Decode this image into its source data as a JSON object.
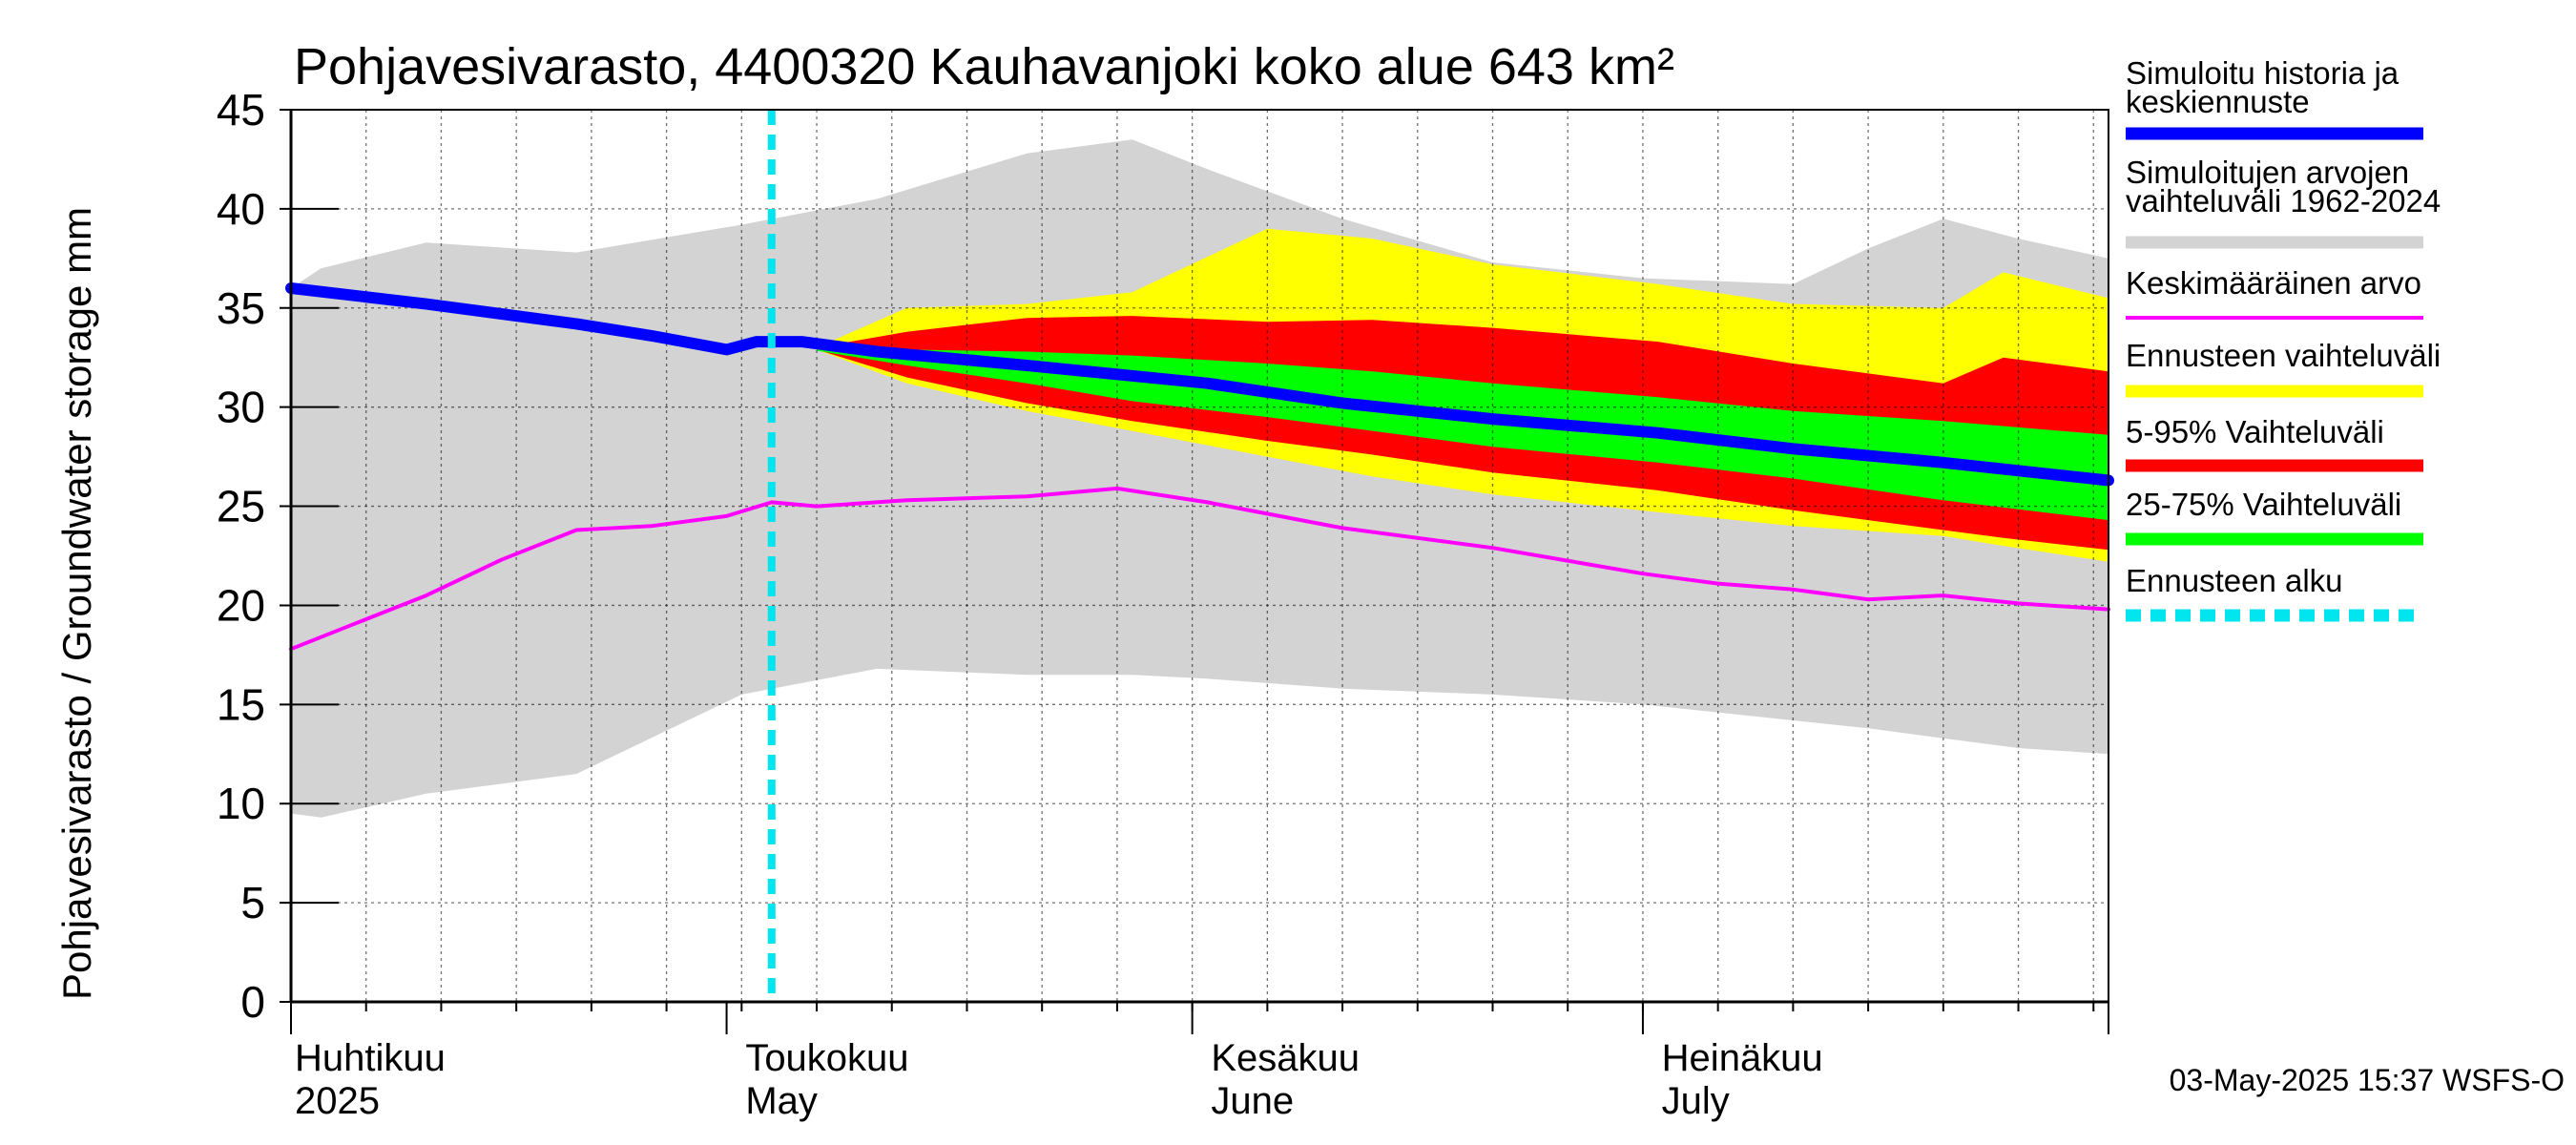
{
  "chart_data": {
    "type": "area",
    "title": "Pohjavesivarasto, 4400320 Kauhavanjoki koko alue 643 km²",
    "ylabel": "Pohjavesivarasto / Groundwater storage   mm",
    "ylim": [
      0,
      45
    ],
    "yticks": [
      0,
      5,
      10,
      15,
      20,
      25,
      30,
      35,
      40,
      45
    ],
    "xlim": [
      "2025-04-01",
      "2025-07-31"
    ],
    "grid": true,
    "month_labels": [
      {
        "date": "2025-04-01",
        "line1": "Huhtikuu",
        "line2": "2025"
      },
      {
        "date": "2025-05-01",
        "line1": "Toukokuu",
        "line2": "May"
      },
      {
        "date": "2025-06-01",
        "line1": "Kesäkuu",
        "line2": "June"
      },
      {
        "date": "2025-07-01",
        "line1": "Heinäkuu",
        "line2": "July"
      }
    ],
    "forecast_start": "2025-05-03",
    "series": [
      {
        "name": "Simuloitujen arvojen vaihteluväli 1962-2024",
        "kind": "band",
        "color": "#d3d3d3",
        "x": [
          "2025-04-01",
          "2025-04-03",
          "2025-04-10",
          "2025-04-20",
          "2025-05-01",
          "2025-05-10",
          "2025-05-20",
          "2025-05-27",
          "2025-06-01",
          "2025-06-10",
          "2025-06-20",
          "2025-06-30",
          "2025-07-10",
          "2025-07-15",
          "2025-07-20",
          "2025-07-25",
          "2025-07-31"
        ],
        "upper": [
          36,
          37,
          38.3,
          37.8,
          39.2,
          40.5,
          42.8,
          43.5,
          42,
          39.5,
          37.3,
          36.5,
          36.2,
          38,
          39.5,
          38.5,
          37.5
        ],
        "lower": [
          9.5,
          9.3,
          10.5,
          11.5,
          15.5,
          16.8,
          16.5,
          16.5,
          16.3,
          15.8,
          15.5,
          15,
          14.2,
          13.8,
          13.3,
          12.8,
          12.5
        ]
      },
      {
        "name": "Ennusteen vaihteluväli",
        "kind": "band",
        "color": "#ffff00",
        "x": [
          "2025-05-06",
          "2025-05-12",
          "2025-05-20",
          "2025-05-27",
          "2025-06-05",
          "2025-06-12",
          "2025-06-20",
          "2025-07-01",
          "2025-07-10",
          "2025-07-20",
          "2025-07-24",
          "2025-07-31"
        ],
        "upper": [
          33.0,
          35.0,
          35.2,
          35.8,
          39.0,
          38.5,
          37.2,
          36.2,
          35.2,
          35.0,
          36.8,
          35.5
        ],
        "lower": [
          32.9,
          31.2,
          29.8,
          28.8,
          27.5,
          26.5,
          25.6,
          24.7,
          24.0,
          23.5,
          23.0,
          22.2
        ]
      },
      {
        "name": "5-95% Vaihteluväli",
        "kind": "band",
        "color": "#ff0000",
        "x": [
          "2025-05-06",
          "2025-05-12",
          "2025-05-20",
          "2025-05-27",
          "2025-06-05",
          "2025-06-12",
          "2025-06-20",
          "2025-07-01",
          "2025-07-10",
          "2025-07-20",
          "2025-07-24",
          "2025-07-31"
        ],
        "upper": [
          33.0,
          33.8,
          34.5,
          34.6,
          34.3,
          34.4,
          34.0,
          33.3,
          32.2,
          31.2,
          32.5,
          31.8
        ],
        "lower": [
          32.9,
          31.5,
          30.2,
          29.3,
          28.3,
          27.6,
          26.7,
          25.8,
          24.8,
          23.8,
          23.4,
          22.8
        ]
      },
      {
        "name": "25-75% Vaihteluväli",
        "kind": "band",
        "color": "#00ff00",
        "x": [
          "2025-05-06",
          "2025-05-12",
          "2025-05-20",
          "2025-05-27",
          "2025-06-05",
          "2025-06-12",
          "2025-06-20",
          "2025-07-01",
          "2025-07-10",
          "2025-07-20",
          "2025-07-31"
        ],
        "upper": [
          32.95,
          32.9,
          32.8,
          32.6,
          32.2,
          31.8,
          31.2,
          30.5,
          29.8,
          29.3,
          28.6
        ],
        "lower": [
          32.85,
          32.1,
          31.2,
          30.3,
          29.5,
          28.8,
          28.0,
          27.2,
          26.4,
          25.3,
          24.3
        ]
      },
      {
        "name": "Keskimääräinen arvo",
        "kind": "line",
        "color": "#ff00ff",
        "x": [
          "2025-04-01",
          "2025-04-05",
          "2025-04-10",
          "2025-04-15",
          "2025-04-20",
          "2025-04-25",
          "2025-04-30",
          "2025-05-03",
          "2025-05-06",
          "2025-05-12",
          "2025-05-20",
          "2025-05-26",
          "2025-06-01",
          "2025-06-10",
          "2025-06-20",
          "2025-06-30",
          "2025-07-05",
          "2025-07-10",
          "2025-07-15",
          "2025-07-20",
          "2025-07-25",
          "2025-07-31"
        ],
        "y": [
          17.8,
          19.0,
          20.5,
          22.3,
          23.8,
          24.0,
          24.5,
          25.2,
          25.0,
          25.3,
          25.5,
          25.9,
          25.2,
          23.9,
          22.9,
          21.6,
          21.1,
          20.8,
          20.3,
          20.5,
          20.1,
          19.8
        ]
      },
      {
        "name": "Simuloitu historia ja keskiennuste",
        "kind": "line",
        "color": "#0000ff",
        "x": [
          "2025-04-01",
          "2025-04-10",
          "2025-04-20",
          "2025-04-25",
          "2025-04-30",
          "2025-05-02",
          "2025-05-05",
          "2025-05-10",
          "2025-05-20",
          "2025-06-01",
          "2025-06-10",
          "2025-06-20",
          "2025-07-01",
          "2025-07-10",
          "2025-07-20",
          "2025-07-31"
        ],
        "y": [
          36.0,
          35.2,
          34.2,
          33.6,
          32.9,
          33.3,
          33.3,
          32.8,
          32.1,
          31.2,
          30.2,
          29.4,
          28.7,
          27.9,
          27.2,
          26.3
        ]
      }
    ],
    "legend": {
      "placement": "right",
      "items": [
        {
          "label": "Simuloitu historia ja keskiennuste",
          "color": "#0000ff",
          "style": "solid-thick"
        },
        {
          "label": "Simuloitujen arvojen vaihteluväli 1962-2024",
          "color": "#d3d3d3",
          "style": "solid-thick"
        },
        {
          "label": "Keskimääräinen arvo",
          "color": "#ff00ff",
          "style": "solid-thin"
        },
        {
          "label": "Ennusteen vaihteluväli",
          "color": "#ffff00",
          "style": "solid-thick"
        },
        {
          "label": "5-95% Vaihteluväli",
          "color": "#ff0000",
          "style": "solid-thick"
        },
        {
          "label": "25-75% Vaihteluväli",
          "color": "#00ff00",
          "style": "solid-thick"
        },
        {
          "label": "Ennusteen alku",
          "color": "#00e5ee",
          "style": "dashed-thick"
        }
      ]
    },
    "footer": "03-May-2025 15:37 WSFS-O"
  }
}
